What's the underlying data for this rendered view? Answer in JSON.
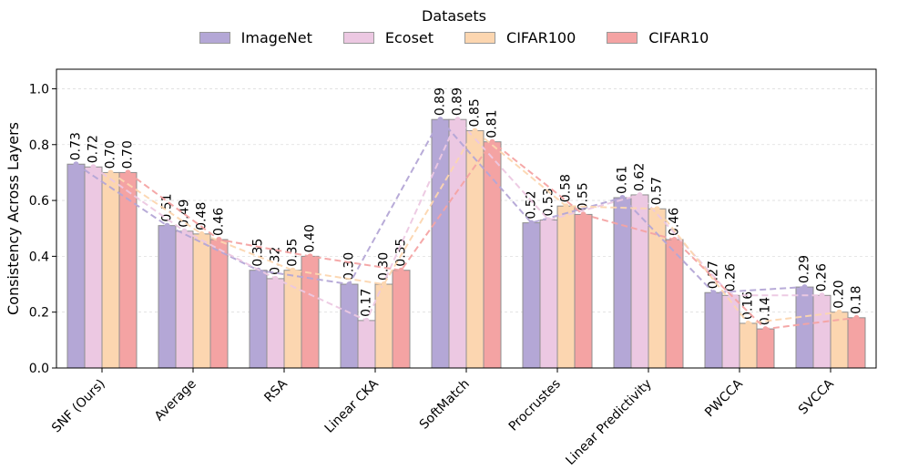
{
  "chart_data": {
    "type": "bar",
    "title": "",
    "legend_title": "Datasets",
    "xlabel": "",
    "ylabel": "Consistency Across Layers",
    "ylim": [
      0,
      1.07
    ],
    "yticks": [
      "0.0",
      "0.2",
      "0.4",
      "0.6",
      "0.8",
      "1.0"
    ],
    "grid": "horizontal dashed",
    "legend_position": "top-center",
    "categories": [
      "SNF (Ours)",
      "Average",
      "RSA",
      "Linear CKA",
      "SoftMatch",
      "Procrustes",
      "Linear Predictivity",
      "PWCCA",
      "SVCCA"
    ],
    "series": [
      {
        "name": "ImageNet",
        "color": "#b4a7d6",
        "values": [
          0.73,
          0.51,
          0.35,
          0.3,
          0.89,
          0.52,
          0.61,
          0.27,
          0.29
        ],
        "labels": [
          "0.73",
          "0.51",
          "0.35",
          "0.30",
          "0.89",
          "0.52",
          "0.61",
          "0.27",
          "0.29"
        ]
      },
      {
        "name": "Ecoset",
        "color": "#ecc8e2",
        "values": [
          0.72,
          0.49,
          0.32,
          0.17,
          0.89,
          0.53,
          0.62,
          0.26,
          0.26
        ],
        "labels": [
          "0.72",
          "0.49",
          "0.32",
          "0.17",
          "0.89",
          "0.53",
          "0.62",
          "0.26",
          "0.26"
        ]
      },
      {
        "name": "CIFAR100",
        "color": "#fcd6b0",
        "values": [
          0.7,
          0.48,
          0.35,
          0.3,
          0.85,
          0.58,
          0.57,
          0.16,
          0.2
        ],
        "labels": [
          "0.70",
          "0.48",
          "0.35",
          "0.30",
          "0.85",
          "0.58",
          "0.57",
          "0.16",
          "0.20"
        ]
      },
      {
        "name": "CIFAR10",
        "color": "#f4a3a3",
        "values": [
          0.7,
          0.46,
          0.4,
          0.35,
          0.81,
          0.55,
          0.46,
          0.14,
          0.18
        ],
        "labels": [
          "0.70",
          "0.46",
          "0.40",
          "0.35",
          "0.81",
          "0.55",
          "0.46",
          "0.14",
          "0.18"
        ]
      }
    ],
    "line_overlay": "dashed lines connecting each series' bar tops across categories"
  }
}
